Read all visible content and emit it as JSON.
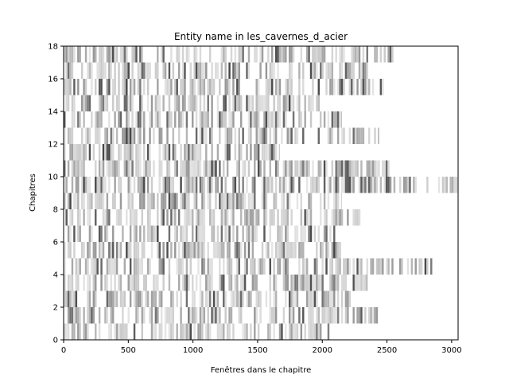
{
  "chart_data": {
    "type": "heatmap",
    "title": "Entity name in les_cavernes_d_acier",
    "xlabel": "Fenêtres dans le chapitre",
    "ylabel": "Chapitres",
    "xlim": [
      0,
      3050
    ],
    "ylim": [
      0,
      18
    ],
    "xticks": [
      0,
      500,
      1000,
      1500,
      2000,
      2500,
      3000
    ],
    "yticks": [
      0,
      2,
      4,
      6,
      8,
      10,
      12,
      14,
      16,
      18
    ],
    "grid": false,
    "legend": "none",
    "colormap": "greys",
    "rows": [
      {
        "chapter": 0,
        "length": 2080
      },
      {
        "chapter": 1,
        "length": 2430
      },
      {
        "chapter": 2,
        "length": 2250
      },
      {
        "chapter": 3,
        "length": 2350
      },
      {
        "chapter": 4,
        "length": 2850
      },
      {
        "chapter": 5,
        "length": 2150
      },
      {
        "chapter": 6,
        "length": 2100
      },
      {
        "chapter": 7,
        "length": 2300
      },
      {
        "chapter": 8,
        "length": 2150
      },
      {
        "chapter": 9,
        "length": 3050
      },
      {
        "chapter": 10,
        "length": 2520
      },
      {
        "chapter": 11,
        "length": 1670
      },
      {
        "chapter": 12,
        "length": 2440
      },
      {
        "chapter": 13,
        "length": 2150
      },
      {
        "chapter": 14,
        "length": 1990
      },
      {
        "chapter": 15,
        "length": 2480
      },
      {
        "chapter": 16,
        "length": 2390
      },
      {
        "chapter": 17,
        "length": 2550
      }
    ]
  }
}
